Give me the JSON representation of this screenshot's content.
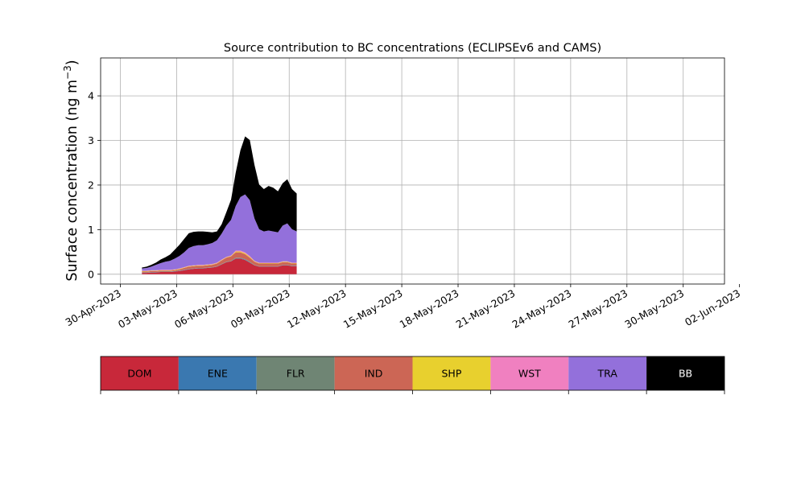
{
  "chart_data": {
    "type": "area",
    "stacked": true,
    "title": "Source contribution to BC concentrations (ECLIPSEv6 and CAMS)",
    "ylabel_prefix": "Surface concentration (ng m",
    "ylabel_exp": "−3",
    "ylabel_suffix": ")",
    "xlabel": "",
    "grid": true,
    "x_range_days": [
      -1.05,
      32.2
    ],
    "ylim": [
      -0.22,
      4.85
    ],
    "y_ticks": [
      0,
      1,
      2,
      3,
      4
    ],
    "x_tick_days": [
      0,
      3,
      6,
      9,
      12,
      15,
      18,
      21,
      24,
      27,
      30,
      33
    ],
    "x_tick_labels": [
      "30-Apr-2023",
      "03-May-2023",
      "06-May-2023",
      "09-May-2023",
      "12-May-2023",
      "15-May-2023",
      "18-May-2023",
      "21-May-2023",
      "24-May-2023",
      "27-May-2023",
      "30-May-2023",
      "02-Jun-2023"
    ],
    "x_start_day": 1.15,
    "x_step_days": 0.25,
    "series": [
      {
        "name": "DOM",
        "color": "#c8283a",
        "values": [
          0.03,
          0.03,
          0.04,
          0.04,
          0.05,
          0.05,
          0.05,
          0.06,
          0.07,
          0.09,
          0.11,
          0.12,
          0.13,
          0.13,
          0.14,
          0.15,
          0.17,
          0.22,
          0.27,
          0.29,
          0.35,
          0.35,
          0.32,
          0.26,
          0.2,
          0.17,
          0.17,
          0.17,
          0.17,
          0.17,
          0.2,
          0.2,
          0.18,
          0.18
        ]
      },
      {
        "name": "ENE",
        "color": "#3a78b0",
        "values": [
          0.005,
          0.005,
          0.005,
          0.005,
          0.005,
          0.005,
          0.005,
          0.005,
          0.005,
          0.005,
          0.005,
          0.005,
          0.005,
          0.005,
          0.005,
          0.005,
          0.005,
          0.005,
          0.005,
          0.005,
          0.01,
          0.01,
          0.01,
          0.01,
          0.005,
          0.005,
          0.005,
          0.005,
          0.005,
          0.005,
          0.005,
          0.005,
          0.005,
          0.005
        ]
      },
      {
        "name": "FLR",
        "color": "#6f8574",
        "values": [
          0.005,
          0.005,
          0.005,
          0.005,
          0.005,
          0.005,
          0.005,
          0.005,
          0.005,
          0.005,
          0.005,
          0.005,
          0.005,
          0.005,
          0.005,
          0.005,
          0.005,
          0.005,
          0.005,
          0.005,
          0.01,
          0.01,
          0.01,
          0.01,
          0.005,
          0.005,
          0.005,
          0.005,
          0.005,
          0.005,
          0.005,
          0.005,
          0.005,
          0.005
        ]
      },
      {
        "name": "IND",
        "color": "#cc6655",
        "values": [
          0.02,
          0.02,
          0.02,
          0.02,
          0.02,
          0.02,
          0.02,
          0.02,
          0.03,
          0.04,
          0.05,
          0.05,
          0.05,
          0.05,
          0.05,
          0.05,
          0.06,
          0.08,
          0.09,
          0.1,
          0.12,
          0.12,
          0.11,
          0.09,
          0.07,
          0.06,
          0.06,
          0.06,
          0.06,
          0.06,
          0.06,
          0.06,
          0.05,
          0.05
        ]
      },
      {
        "name": "SHP",
        "color": "#e8d02e",
        "values": [
          0.01,
          0.01,
          0.01,
          0.01,
          0.01,
          0.01,
          0.01,
          0.01,
          0.01,
          0.01,
          0.01,
          0.01,
          0.01,
          0.01,
          0.01,
          0.01,
          0.01,
          0.01,
          0.01,
          0.01,
          0.02,
          0.02,
          0.02,
          0.02,
          0.01,
          0.01,
          0.01,
          0.01,
          0.01,
          0.01,
          0.01,
          0.01,
          0.01,
          0.01
        ]
      },
      {
        "name": "WST",
        "color": "#f080c0",
        "values": [
          0.01,
          0.01,
          0.01,
          0.01,
          0.01,
          0.01,
          0.01,
          0.01,
          0.01,
          0.01,
          0.01,
          0.01,
          0.01,
          0.01,
          0.01,
          0.01,
          0.01,
          0.01,
          0.01,
          0.01,
          0.02,
          0.02,
          0.02,
          0.02,
          0.01,
          0.01,
          0.01,
          0.01,
          0.01,
          0.01,
          0.01,
          0.01,
          0.01,
          0.01
        ]
      },
      {
        "name": "TRA",
        "color": "#9370db",
        "values": [
          0.05,
          0.06,
          0.08,
          0.12,
          0.15,
          0.18,
          0.2,
          0.24,
          0.28,
          0.33,
          0.4,
          0.43,
          0.44,
          0.44,
          0.45,
          0.47,
          0.5,
          0.58,
          0.7,
          0.8,
          1.0,
          1.2,
          1.3,
          1.25,
          0.95,
          0.75,
          0.7,
          0.72,
          0.7,
          0.68,
          0.8,
          0.85,
          0.75,
          0.7
        ]
      },
      {
        "name": "BB",
        "color": "#000000",
        "values": [
          0.02,
          0.03,
          0.04,
          0.05,
          0.08,
          0.1,
          0.14,
          0.2,
          0.25,
          0.3,
          0.33,
          0.32,
          0.31,
          0.31,
          0.28,
          0.24,
          0.2,
          0.21,
          0.3,
          0.45,
          0.75,
          1.05,
          1.3,
          1.35,
          1.2,
          1.0,
          0.95,
          1.0,
          0.98,
          0.92,
          0.95,
          0.99,
          0.9,
          0.85
        ]
      }
    ]
  }
}
